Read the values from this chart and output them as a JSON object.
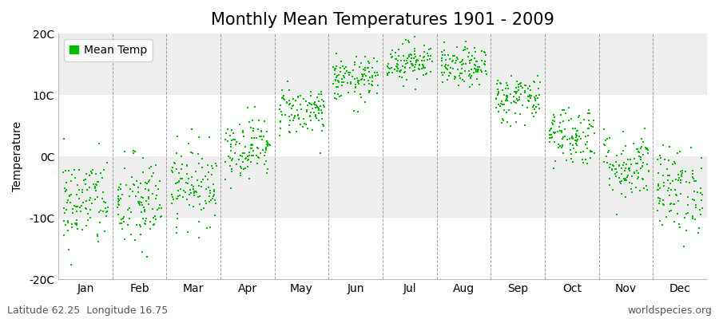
{
  "title": "Monthly Mean Temperatures 1901 - 2009",
  "ylabel": "Temperature",
  "ylim": [
    -20,
    20
  ],
  "yticks": [
    -20,
    -10,
    0,
    10,
    20
  ],
  "ytick_labels": [
    "-20C",
    "-10C",
    "0C",
    "10C",
    "20C"
  ],
  "months": [
    "Jan",
    "Feb",
    "Mar",
    "Apr",
    "May",
    "Jun",
    "Jul",
    "Aug",
    "Sep",
    "Oct",
    "Nov",
    "Dec"
  ],
  "month_means": [
    -7.5,
    -7.8,
    -4.5,
    1.5,
    7.5,
    12.5,
    15.5,
    14.5,
    9.5,
    3.5,
    -1.5,
    -5.5
  ],
  "month_stds": [
    3.8,
    4.0,
    3.2,
    2.5,
    2.0,
    1.8,
    1.6,
    1.6,
    2.0,
    2.5,
    2.8,
    3.5
  ],
  "n_years": 109,
  "dot_color": "#00bb00",
  "dot_size": 3,
  "fig_bg_color": "#ffffff",
  "plot_bg_color": "#ffffff",
  "band_color_light": "#eeeeee",
  "band_color_white": "#ffffff",
  "legend_label": "Mean Temp",
  "footer_left": "Latitude 62.25  Longitude 16.75",
  "footer_right": "worldspecies.org",
  "title_fontsize": 15,
  "axis_fontsize": 10,
  "tick_fontsize": 10,
  "footer_fontsize": 9,
  "random_seed": 42
}
